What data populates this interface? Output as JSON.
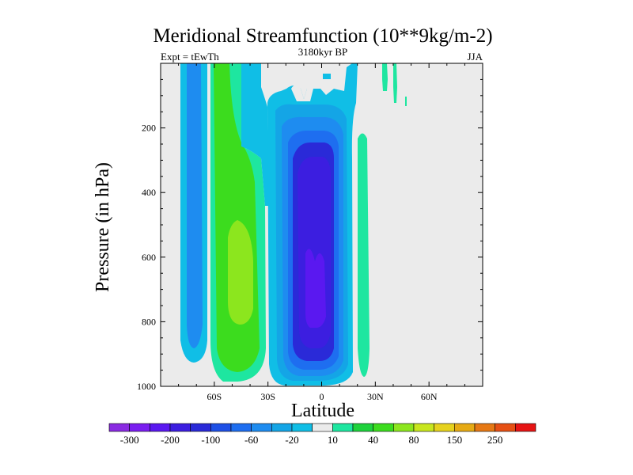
{
  "chart_data": {
    "type": "heatmap",
    "title": "Meridional Streamfunction (10**9kg/m-2)",
    "subtitle_center": "3180kyr BP",
    "subtitle_left": "Expt = tEwTh",
    "subtitle_right": "JJA",
    "xlabel": "Latitude",
    "ylabel": "Pressure (in hPa)",
    "xlim": [
      -90,
      90
    ],
    "ylim": [
      1000,
      0
    ],
    "x_ticks": [
      {
        "value": -60,
        "label": "60S"
      },
      {
        "value": -30,
        "label": "30S"
      },
      {
        "value": 0,
        "label": "0"
      },
      {
        "value": 30,
        "label": "30N"
      },
      {
        "value": 60,
        "label": "60N"
      }
    ],
    "y_ticks": [
      {
        "value": 200,
        "label": "200"
      },
      {
        "value": 400,
        "label": "400"
      },
      {
        "value": 600,
        "label": "600"
      },
      {
        "value": 800,
        "label": "800"
      },
      {
        "value": 1000,
        "label": "1000"
      }
    ],
    "colorbar": {
      "levels": [
        -300,
        -250,
        -200,
        -150,
        -100,
        -80,
        -60,
        -40,
        -20,
        -10,
        10,
        20,
        40,
        60,
        80,
        100,
        150,
        200,
        250,
        300
      ],
      "labels": [
        "-300",
        "-200",
        "-100",
        "-60",
        "-20",
        "10",
        "40",
        "80",
        "150",
        "250"
      ],
      "colors": [
        "#8a2be2",
        "#7a1ef0",
        "#5a18f0",
        "#3c1ee0",
        "#2a2ad8",
        "#1e50e6",
        "#1e6ef0",
        "#1e8cf0",
        "#14a5e6",
        "#10bee6",
        "#ebebeb",
        "#1ee6a0",
        "#1ed23c",
        "#3cdc1e",
        "#8ce61e",
        "#c8e61e",
        "#e6d21e",
        "#e6aa14",
        "#e67814",
        "#e65014",
        "#e61414"
      ]
    },
    "regions": [
      {
        "name": "inner-mid-south-cell",
        "fill_level": 40,
        "color": "#8ce61e",
        "note": "~60-35S, 500-900 hPa"
      },
      {
        "name": "mid-south-cell",
        "fill_level": 20,
        "color": "#3cdc1e",
        "note": "~65-30S, 0-980 hPa"
      },
      {
        "name": "south-polar-cell",
        "fill_level": -20,
        "color": "#1e8cf0",
        "note": "~85-70S, 0-950 hPa"
      },
      {
        "name": "hadley-cell",
        "fill_level": -200,
        "color": "#5a18f0",
        "note": "~30S-10N, 80-1000 hPa, core ~-200"
      },
      {
        "name": "north-tropical-cell",
        "fill_level": 10,
        "color": "#1ee6a0",
        "note": "~20-25N, 200-1000 hPa"
      },
      {
        "name": "north-strato-streaks",
        "fill_level": 10,
        "color": "#1ee6a0",
        "note": "~35-45N, 0-100 hPa"
      }
    ]
  }
}
